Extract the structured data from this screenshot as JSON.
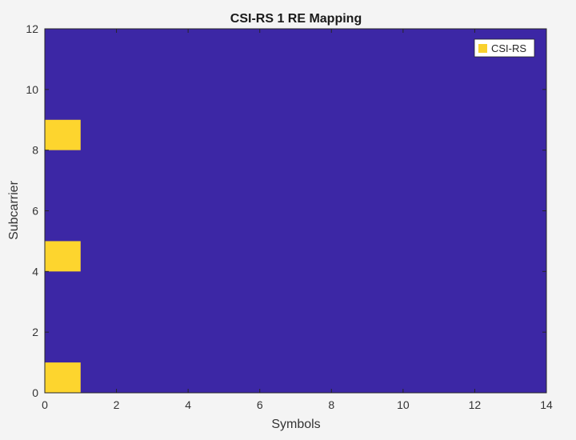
{
  "chart_data": {
    "type": "heatmap",
    "title": "CSI-RS 1 RE Mapping",
    "xlabel": "Symbols",
    "ylabel": "Subcarrier",
    "xlim": [
      0,
      14
    ],
    "ylim": [
      0,
      12
    ],
    "xticks": [
      0,
      2,
      4,
      6,
      8,
      10,
      12,
      14
    ],
    "yticks": [
      0,
      2,
      4,
      6,
      8,
      10,
      12
    ],
    "grid": false,
    "legend": {
      "position": "top-right",
      "entries": [
        {
          "label": "CSI-RS",
          "color": "#f9d12d"
        }
      ]
    },
    "background_color": "#3c27a5",
    "highlight_color": "#fdd52e",
    "cells": [
      {
        "symbol": 0,
        "subcarrier": 0,
        "label": "CSI-RS"
      },
      {
        "symbol": 0,
        "subcarrier": 4,
        "label": "CSI-RS"
      },
      {
        "symbol": 0,
        "subcarrier": 8,
        "label": "CSI-RS"
      }
    ]
  }
}
